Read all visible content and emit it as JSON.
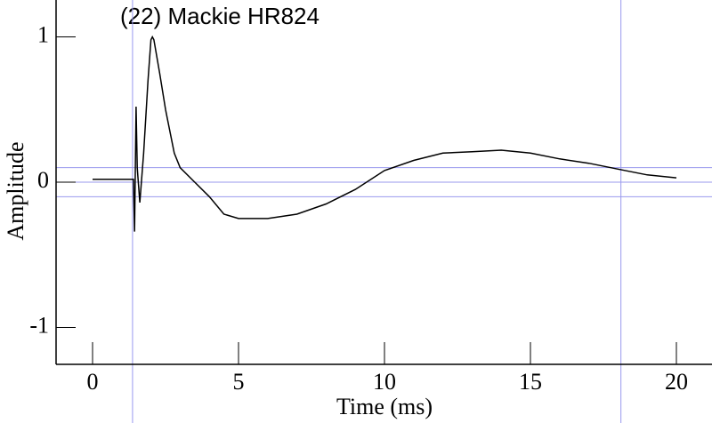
{
  "chart_data": {
    "type": "line",
    "title": "(22) Mackie HR824",
    "x_label": "Time (ms)",
    "y_label": "Amplitude",
    "x": [
      0,
      1.3,
      1.4,
      1.44,
      1.49,
      1.53,
      1.62,
      1.75,
      1.9,
      2.0,
      2.05,
      2.1,
      2.3,
      2.5,
      2.8,
      3,
      3.5,
      4,
      4.5,
      5,
      5.5,
      6,
      7,
      8,
      9,
      10,
      11,
      12,
      13,
      14,
      15,
      16,
      17,
      18,
      19,
      20
    ],
    "series": [
      {
        "color": "#000000",
        "values": [
          0.02,
          0.02,
          0.02,
          -0.34,
          0.52,
          0.1,
          -0.14,
          0.2,
          0.7,
          0.98,
          1.0,
          0.98,
          0.75,
          0.5,
          0.2,
          0.1,
          0.0,
          -0.1,
          -0.22,
          -0.25,
          -0.25,
          -0.25,
          -0.22,
          -0.15,
          -0.05,
          0.08,
          0.15,
          0.2,
          0.21,
          0.22,
          0.2,
          0.16,
          0.13,
          0.09,
          0.05,
          0.03
        ]
      }
    ],
    "xlim": [
      -1.25,
      21.22
    ],
    "ylim": [
      -1.254,
      1.254
    ],
    "xticks": [
      0,
      5,
      10,
      15,
      20
    ],
    "yticks": [
      -1,
      0,
      1
    ],
    "hlines": [
      0.1,
      0,
      -0.1
    ],
    "vlines": [
      1.37,
      18.1
    ],
    "guide_color": "#9999ee"
  }
}
